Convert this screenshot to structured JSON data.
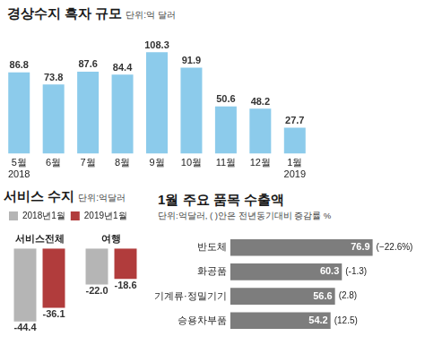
{
  "chart_data": [
    {
      "type": "bar",
      "title": "경상수지 흑자 규모",
      "subtitle": "단위:억 달러",
      "categories": [
        "5월 2018",
        "6월",
        "7월",
        "8월",
        "9월",
        "10월",
        "11월",
        "12월",
        "1월 2019"
      ],
      "values": [
        86.8,
        73.8,
        87.6,
        84.4,
        108.3,
        91.9,
        50.6,
        48.2,
        27.7
      ],
      "color": "#8ccbeb",
      "ylim": [
        0,
        120
      ],
      "data_labels": true,
      "tick_labels": "x",
      "grid": false
    },
    {
      "type": "bar",
      "title": "서비스 수지",
      "subtitle": "단위:억달러",
      "categories": [
        "서비스전체",
        "여행"
      ],
      "series": [
        {
          "name": "2018년1월",
          "color": "#b5b5b5",
          "values": [
            -44.4,
            -22.0
          ],
          "value_labels": [
            "-44.4",
            "-22.0"
          ]
        },
        {
          "name": "2019년1월",
          "color": "#b13c3c",
          "values": [
            -36.1,
            -18.6
          ]
        }
      ],
      "ylim": [
        -50,
        0
      ],
      "data_labels": true,
      "legend": "top",
      "tick_labels": "x",
      "grid": false
    },
    {
      "type": "bar",
      "orientation": "horizontal",
      "title": "1월 주요 품목 수출액",
      "subtitle": "단위:억달러, ( )안은 전년동기대비 증감률 %",
      "categories": [
        "반도체",
        "화공품",
        "기계류·정밀기기",
        "승용차부품"
      ],
      "values": [
        76.9,
        60.3,
        56.6,
        54.2
      ],
      "changes": [
        -22.6,
        -1.3,
        2.8,
        12.5
      ],
      "change_labels": [
        "(−22.6%)",
        "(-1.3)",
        "(2.8)",
        "(12.5)"
      ],
      "color": "#7d7d7d",
      "xlim": [
        0,
        80
      ],
      "data_labels": true,
      "tick_labels": "y",
      "grid": false
    }
  ]
}
